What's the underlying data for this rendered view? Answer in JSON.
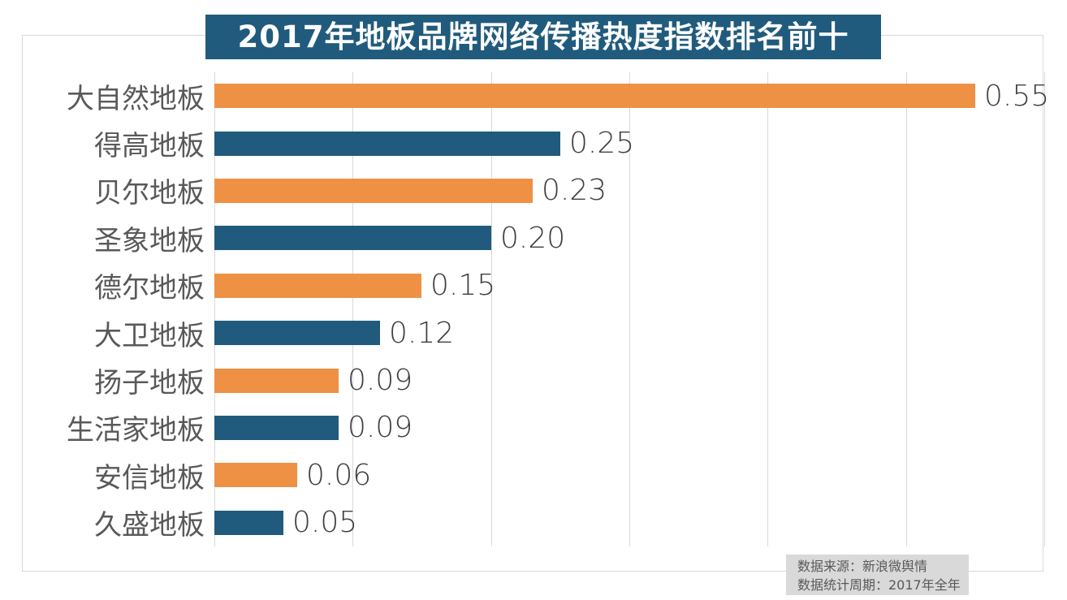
{
  "chart_data": {
    "type": "bar",
    "orientation": "horizontal",
    "title": "2017年地板品牌网络传播热度指数排名前十",
    "categories": [
      "大自然地板",
      "得高地板",
      "贝尔地板",
      "圣象地板",
      "德尔地板",
      "大卫地板",
      "扬子地板",
      "生活家地板",
      "安信地板",
      "久盛地板"
    ],
    "values": [
      0.55,
      0.25,
      0.23,
      0.2,
      0.15,
      0.12,
      0.09,
      0.09,
      0.06,
      0.05
    ],
    "value_labels": [
      "0.55",
      "0.25",
      "0.23",
      "0.20",
      "0.15",
      "0.12",
      "0.09",
      "0.09",
      "0.06",
      "0.05"
    ],
    "bar_colors": [
      "#EF9144",
      "#205B7D",
      "#EF9144",
      "#205B7D",
      "#EF9144",
      "#205B7D",
      "#EF9144",
      "#205B7D",
      "#EF9144",
      "#205B7D"
    ],
    "xlabel": "",
    "ylabel": "",
    "xlim": [
      0,
      0.6
    ],
    "grid_step": 0.1,
    "grid": true,
    "legend": "none",
    "value_labels_position": "outside-end"
  },
  "colors": {
    "orange": "#EF9144",
    "teal": "#205B7D",
    "title_bg": "#205B7D",
    "title_text": "#FFFFFF",
    "gridline": "#D9D9D9",
    "plot_border": "#D9D9D9",
    "category_text": "#595959",
    "value_text": "#404040",
    "source_bg": "#D9D9D9",
    "source_text": "#595959"
  },
  "source": {
    "line1": "数据来源：新浪微舆情",
    "line2": "数据统计周期：2017年全年"
  }
}
